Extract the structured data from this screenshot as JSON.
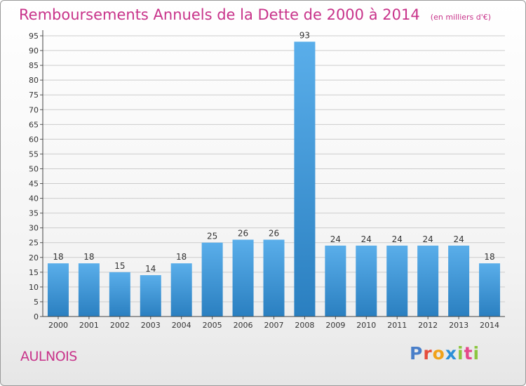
{
  "header": {
    "title": "Remboursements Annuels de la Dette de 2000 à 2014",
    "subtitle": "(en milliers d'€)"
  },
  "commune": "AULNOIS",
  "logo": {
    "text": "Proxiti"
  },
  "colors": {
    "title": "#c8338a",
    "bar_top": "#5aaeea",
    "bar_bottom": "#2a7fc0",
    "grid": "#cccccc"
  },
  "chart_data": {
    "type": "bar",
    "title": "Remboursements Annuels de la Dette de 2000 à 2014",
    "subtitle": "(en milliers d'€)",
    "categories": [
      "2000",
      "2001",
      "2002",
      "2003",
      "2004",
      "2005",
      "2006",
      "2007",
      "2008",
      "2009",
      "2010",
      "2011",
      "2012",
      "2013",
      "2014"
    ],
    "values": [
      18,
      18,
      15,
      14,
      18,
      25,
      26,
      26,
      93,
      24,
      24,
      24,
      24,
      24,
      18
    ],
    "ylim": [
      0,
      95
    ],
    "ytick_step": 5,
    "grid": true,
    "show_data_labels": true
  }
}
